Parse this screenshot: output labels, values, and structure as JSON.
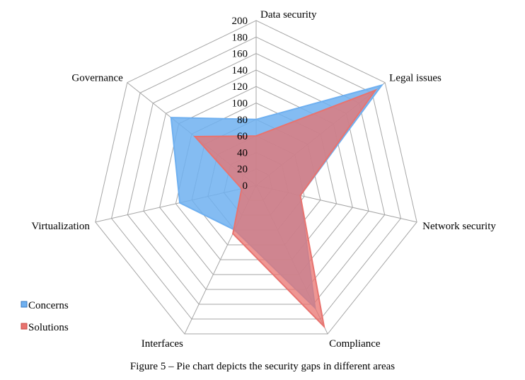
{
  "chart_data": {
    "type": "radar",
    "categories": [
      "Data security",
      "Legal issues",
      "Network security",
      "Compliance",
      "Interfaces",
      "Virtualization",
      "Governance"
    ],
    "series": [
      {
        "name": "Concerns",
        "color": "#6fb0f0",
        "values": [
          80,
          195,
          55,
          165,
          60,
          95,
          132
        ]
      },
      {
        "name": "Solutions",
        "color": "#e8736f",
        "values": [
          60,
          185,
          55,
          190,
          65,
          18,
          95
        ]
      }
    ],
    "rlim": [
      0,
      200
    ],
    "ticks": [
      "0",
      "20",
      "40",
      "60",
      "80",
      "100",
      "120",
      "140",
      "160",
      "180",
      "200"
    ],
    "grid": true,
    "legend_position": "bottom-left"
  },
  "caption": "Figure 5 – Pie chart depicts the security gaps in different areas"
}
